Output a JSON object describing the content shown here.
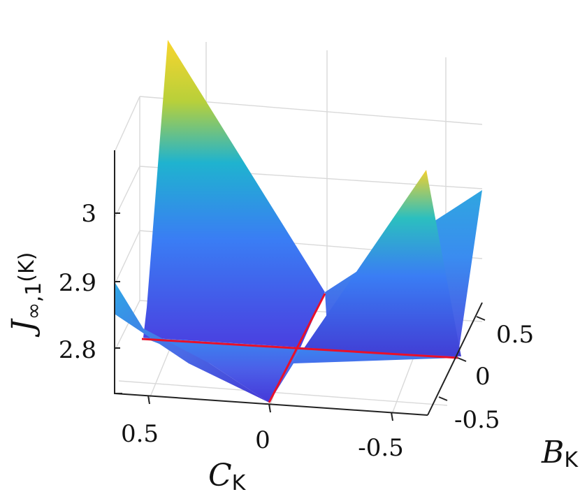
{
  "chart_data": {
    "type": "surface3d",
    "title": "",
    "zlabel": "J",
    "zlabel_sub": "∞,1",
    "zlabel_tail": "(K)",
    "xlabel": "C",
    "xlabel_sub": "K",
    "ylabel": "B",
    "ylabel_sub": "K",
    "z_ticks": [
      "2.8",
      "2.9",
      "3"
    ],
    "x_ticks": [
      "0.5",
      "0",
      "-0.5"
    ],
    "y_ticks": [
      "0.5",
      "0",
      "-0.5"
    ],
    "colormap": [
      "#3e26a8",
      "#4a3fe0",
      "#3a7df4",
      "#1fb3cf",
      "#3fcf9a",
      "#b8d03a",
      "#f9d52e",
      "#f9fb0e"
    ],
    "highlight_color": "#e8102a",
    "grid": true,
    "notes_series": [
      {
        "name": "",
        "points": [
          {
            "C": 0,
            "B": -0.5,
            "J": 2.8
          },
          {
            "C": 0,
            "B": 0.5,
            "J": 2.8
          }
        ]
      },
      {
        "name": "",
        "points": [
          {
            "C": 0.6,
            "B": 0,
            "J": 2.8
          },
          {
            "C": -0.6,
            "B": 0,
            "J": 2.8
          }
        ]
      }
    ]
  }
}
